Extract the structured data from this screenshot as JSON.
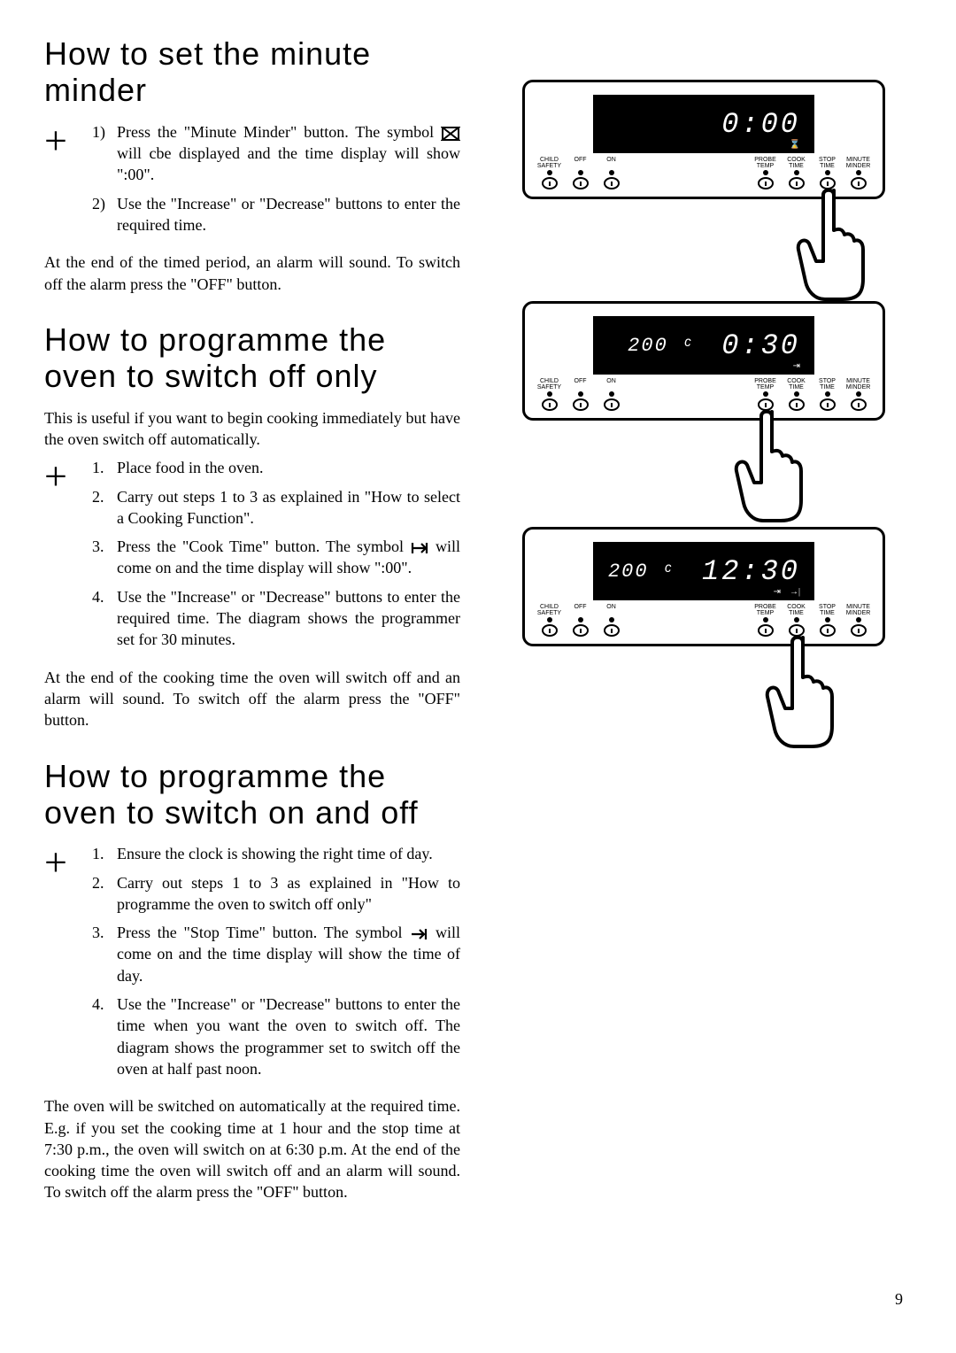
{
  "sections": {
    "s1": {
      "heading": "How to set the minute minder",
      "steps": [
        "Press the \"Minute Minder\" button. The symbol ⌛ will cbe displayed and the time display will show \":00\".",
        "Use the \"Increase\" or \"Decrease\" buttons to enter the required time."
      ],
      "step1_a": "Press the \"Minute Minder\" button. The symbol ",
      "step1_b": " will cbe displayed and the time display will show \":00\".",
      "step2": "Use the \"Increase\" or \"Decrease\" buttons to enter the required time.",
      "footer": "At the end of the timed period, an alarm will sound. To switch off the alarm press the \"OFF\" button."
    },
    "s2": {
      "heading": "How to programme the oven to switch off only",
      "intro": "This is useful if you want to begin cooking immediately but have the oven switch off automatically.",
      "step1": "Place food in the oven.",
      "step2": "Carry out steps 1 to 3 as explained in \"How to select a Cooking Function\".",
      "step3_a": "Press the \"Cook Time\" button. The symbol ",
      "step3_b": " will come on and the time display will show \":00\".",
      "step4": "Use the \"Increase\" or \"Decrease\" buttons to enter the required time. The diagram shows the programmer set for 30 minutes.",
      "footer": "At the end of the cooking time the oven will switch off and an alarm will sound. To switch off the alarm press the \"OFF\" button."
    },
    "s3": {
      "heading": "How to programme the oven to switch on and off",
      "step1": "Ensure the clock is showing the right time of day.",
      "step2": "Carry out steps 1 to 3 as explained in \"How to programme the oven to switch off only\"",
      "step3_a": "Press the \"Stop Time\" button. The symbol ",
      "step3_b": " will come on and the time display will show the time of day.",
      "step4": "Use the \"Increase\" or \"Decrease\" buttons to enter the time when you want the oven to switch off. The diagram shows the programmer set to switch off the oven at half past noon.",
      "footer": "The oven will be switched on automatically at the required time. E.g. if you set the cooking time at 1 hour and the stop time at 7:30 p.m., the oven will switch on at 6:30 p.m. At the end of the cooking time the oven will switch off and an alarm will sound. To switch off the alarm press the \"OFF\" button."
    }
  },
  "panels": {
    "p1": {
      "temp": "",
      "time": "0:00",
      "hand_button_index": 7,
      "sub_icons": [
        "⌛"
      ]
    },
    "p2": {
      "temp": "200 ᶜ",
      "time": "0:30",
      "hand_button_index": 5,
      "sub_icons": [
        "⇥"
      ]
    },
    "p3": {
      "temp": "200 ᶜ",
      "time": "12:30",
      "hand_button_index": 6,
      "sub_icons": [
        "⇥",
        "→|"
      ]
    }
  },
  "panel_buttons": {
    "left": [
      "CHILD\nSAFETY",
      "OFF",
      "ON"
    ],
    "right": [
      "PROBE\nTEMP",
      "COOK\nTIME",
      "STOP\nTIME",
      "MINUTE\nMINDER"
    ]
  },
  "page_number": "9",
  "styling": {
    "heading_font": "Arial",
    "heading_size_pt": 27,
    "heading_weight": 300,
    "body_font": "Times",
    "body_size_pt": 13,
    "plus_size_pt": 34,
    "background_color": "#ffffff",
    "text_color": "#000000",
    "panel_border_color": "#000000",
    "display_bg": "#000000",
    "display_fg": "#ffffff"
  }
}
